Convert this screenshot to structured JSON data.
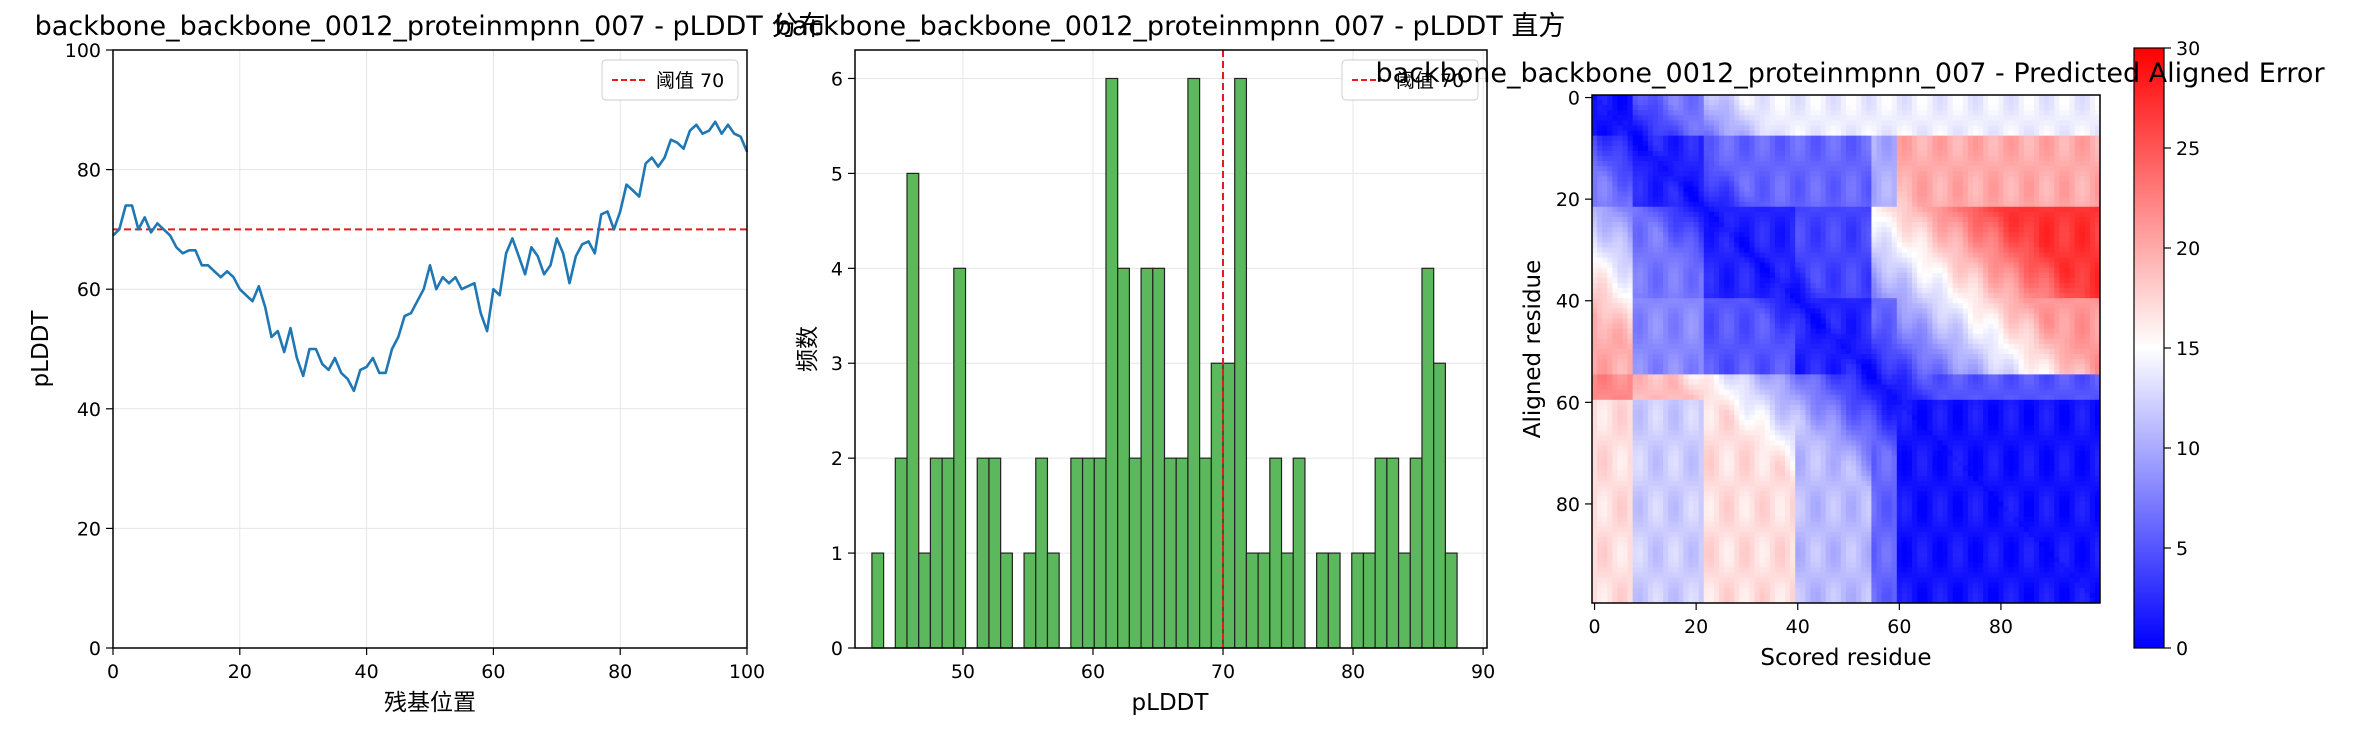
{
  "colors": {
    "line": "#1f77b4",
    "threshold": "#e41a1c",
    "bar_fill": "#5cb85c",
    "bar_edge": "#222222",
    "grid": "#e6e6e6"
  },
  "chart_data": [
    {
      "type": "line",
      "title": "backbone_backbone_0012_proteinmpnn_007 - pLDDT 分布",
      "xlabel": "残基位置",
      "ylabel": "pLDDT",
      "xlim": [
        0,
        100
      ],
      "ylim": [
        0,
        100
      ],
      "xticks": [
        0,
        20,
        40,
        60,
        80,
        100
      ],
      "yticks": [
        0,
        20,
        40,
        60,
        80,
        100
      ],
      "grid": true,
      "legend_position": "top-right",
      "threshold": {
        "label": "阈值 70",
        "value": 70
      },
      "x": [
        0,
        1,
        2,
        3,
        4,
        5,
        6,
        7,
        8,
        9,
        10,
        11,
        12,
        13,
        14,
        15,
        16,
        17,
        18,
        19,
        20,
        21,
        22,
        23,
        24,
        25,
        26,
        27,
        28,
        29,
        30,
        31,
        32,
        33,
        34,
        35,
        36,
        37,
        38,
        39,
        40,
        41,
        42,
        43,
        44,
        45,
        46,
        47,
        48,
        49,
        50,
        51,
        52,
        53,
        54,
        55,
        56,
        57,
        58,
        59,
        60,
        61,
        62,
        63,
        64,
        65,
        66,
        67,
        68,
        69,
        70,
        71,
        72,
        73,
        74,
        75,
        76,
        77,
        78,
        79,
        80,
        81,
        82,
        83,
        84,
        85,
        86,
        87,
        88,
        89,
        90,
        91,
        92,
        93,
        94,
        95,
        96,
        97,
        98,
        99,
        100
      ],
      "y": [
        69,
        70,
        74,
        74,
        70,
        72,
        69.5,
        71,
        70,
        69,
        67,
        66,
        66.5,
        66.5,
        64,
        64,
        63,
        62,
        63,
        62,
        60,
        59,
        58,
        60.5,
        57,
        52,
        53,
        49.5,
        53.5,
        48.5,
        45.5,
        50,
        50,
        47.5,
        46.5,
        48.5,
        46,
        45,
        43,
        46.5,
        47,
        48.5,
        46,
        46,
        50,
        52,
        55.5,
        56,
        58,
        60,
        64,
        60,
        62,
        61,
        62,
        60,
        60.5,
        61,
        56,
        53,
        60,
        59,
        66,
        68.5,
        65.5,
        62.5,
        67,
        65.5,
        62.5,
        64,
        68.5,
        66,
        61,
        65.5,
        67.5,
        68,
        66,
        72.5,
        73,
        70,
        73,
        77.5,
        76.5,
        75.5,
        81,
        82,
        80.5,
        82,
        85,
        84.5,
        83.5,
        86.5,
        87.5,
        86,
        86.5,
        88,
        86,
        87.5,
        86,
        85.5,
        83
      ]
    },
    {
      "type": "bar",
      "title": "backbone_backbone_0012_proteinmpnn_007 - pLDDT 直方",
      "xlabel": "pLDDT",
      "ylabel": "频数",
      "xlim": [
        41.7,
        90.3
      ],
      "ylim": [
        0,
        6.3
      ],
      "xticks": [
        50,
        60,
        70,
        80,
        90
      ],
      "yticks": [
        0,
        1,
        2,
        3,
        4,
        5,
        6
      ],
      "grid": true,
      "legend_position": "top-right",
      "threshold": {
        "label": "阈值 70",
        "value": 70
      },
      "bin_width": 0.9,
      "bin_start": 43,
      "counts": [
        1,
        0,
        2,
        5,
        1,
        2,
        2,
        4,
        0,
        2,
        2,
        1,
        0,
        1,
        2,
        1,
        0,
        2,
        2,
        2,
        6,
        4,
        2,
        4,
        4,
        2,
        2,
        6,
        2,
        3,
        3,
        6,
        1,
        1,
        2,
        1,
        2,
        0,
        1,
        1,
        0,
        1,
        1,
        2,
        2,
        1,
        2,
        4,
        3,
        1
      ]
    },
    {
      "type": "heatmap",
      "title": "backbone_backbone_0012_proteinmpnn_007 - Predicted Aligned Error",
      "xlabel": "Scored residue",
      "ylabel": "Aligned residue",
      "n": 100,
      "xticks": [
        0,
        20,
        40,
        60,
        80
      ],
      "yticks": [
        0,
        20,
        40,
        60,
        80
      ],
      "colorbar": {
        "min": 0,
        "max": 30,
        "ticks": [
          0,
          5,
          10,
          15,
          20,
          25,
          30
        ]
      },
      "colormap": "bwr"
    }
  ]
}
